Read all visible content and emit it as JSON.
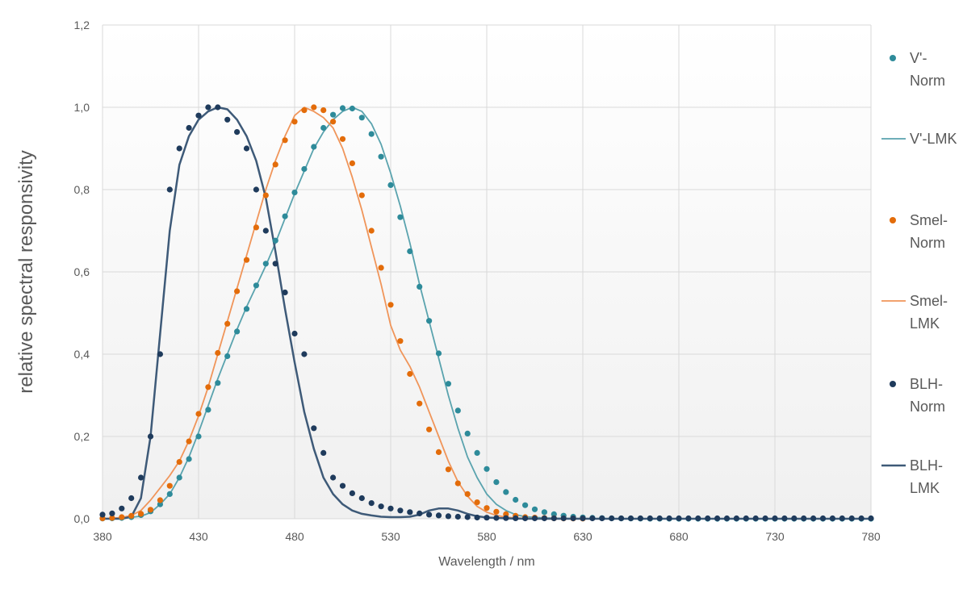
{
  "chart_data": {
    "type": "line",
    "title": "",
    "xlabel": "Wavelength / nm",
    "ylabel": "relative spectral responsivity",
    "xlim": [
      380,
      780
    ],
    "ylim": [
      0,
      1.2
    ],
    "x_ticks": [
      "380",
      "430",
      "480",
      "530",
      "580",
      "630",
      "680",
      "730",
      "780"
    ],
    "y_ticks": [
      "0,0",
      "0,2",
      "0,4",
      "0,6",
      "0,8",
      "1,0",
      "1,2"
    ],
    "grid": true,
    "legend_position": "right",
    "series": [
      {
        "name": "V'-Norm",
        "style": "dots",
        "color": "#2e8b9a",
        "legend_lines": [
          "V'-",
          "Norm"
        ],
        "x": [
          380,
          385,
          390,
          395,
          400,
          405,
          410,
          415,
          420,
          425,
          430,
          435,
          440,
          445,
          450,
          455,
          460,
          465,
          470,
          475,
          480,
          485,
          490,
          495,
          500,
          505,
          510,
          515,
          520,
          525,
          530,
          535,
          540,
          545,
          550,
          555,
          560,
          565,
          570,
          575,
          580,
          585,
          590,
          595,
          600,
          605,
          610,
          615,
          620,
          625,
          630,
          635,
          640,
          645,
          650,
          655,
          660,
          665,
          670,
          675,
          680,
          685,
          690,
          695,
          700,
          705,
          710,
          715,
          720,
          725,
          730,
          735,
          740,
          745,
          750,
          755,
          760,
          765,
          770,
          775,
          780
        ],
        "y": [
          0.0006,
          0.001,
          0.002,
          0.004,
          0.009,
          0.018,
          0.035,
          0.06,
          0.1,
          0.145,
          0.2,
          0.265,
          0.33,
          0.395,
          0.455,
          0.51,
          0.567,
          0.62,
          0.676,
          0.735,
          0.793,
          0.85,
          0.904,
          0.95,
          0.982,
          0.998,
          0.997,
          0.975,
          0.935,
          0.88,
          0.811,
          0.733,
          0.65,
          0.564,
          0.481,
          0.402,
          0.328,
          0.263,
          0.207,
          0.16,
          0.121,
          0.089,
          0.065,
          0.046,
          0.033,
          0.023,
          0.016,
          0.011,
          0.0074,
          0.005,
          0.0033,
          0.0022,
          0.0015,
          0.001,
          0.0007,
          0.0005,
          0.0003,
          0.0002,
          0.0001,
          0.0001,
          0,
          0,
          0,
          0,
          0,
          0,
          0,
          0,
          0,
          0,
          0,
          0,
          0,
          0,
          0,
          0,
          0,
          0,
          0,
          0,
          0
        ]
      },
      {
        "name": "V'-LMK",
        "style": "line",
        "color": "#5aa3ae",
        "legend_lines": [
          "V'-LMK"
        ],
        "x": [
          380,
          390,
          400,
          405,
          410,
          415,
          420,
          425,
          430,
          435,
          440,
          445,
          450,
          455,
          460,
          465,
          470,
          475,
          480,
          485,
          490,
          495,
          500,
          505,
          510,
          515,
          520,
          525,
          530,
          535,
          540,
          545,
          550,
          555,
          560,
          565,
          570,
          575,
          580,
          585,
          590,
          595,
          600,
          610,
          620,
          640,
          680,
          780
        ],
        "y": [
          0,
          0.001,
          0.006,
          0.015,
          0.035,
          0.06,
          0.1,
          0.15,
          0.21,
          0.275,
          0.34,
          0.4,
          0.46,
          0.515,
          0.565,
          0.615,
          0.67,
          0.73,
          0.79,
          0.845,
          0.9,
          0.94,
          0.97,
          0.99,
          1.0,
          0.99,
          0.96,
          0.91,
          0.84,
          0.76,
          0.67,
          0.57,
          0.48,
          0.39,
          0.3,
          0.22,
          0.15,
          0.1,
          0.06,
          0.035,
          0.02,
          0.01,
          0.005,
          0.002,
          0.001,
          0,
          0,
          0
        ]
      },
      {
        "name": "Smel-Norm",
        "style": "dots",
        "color": "#e36c0a",
        "legend_lines": [
          "Smel-",
          "Norm"
        ],
        "x": [
          380,
          385,
          390,
          395,
          400,
          405,
          410,
          415,
          420,
          425,
          430,
          435,
          440,
          445,
          450,
          455,
          460,
          465,
          470,
          475,
          480,
          485,
          490,
          495,
          500,
          505,
          510,
          515,
          520,
          525,
          530,
          535,
          540,
          545,
          550,
          555,
          560,
          565,
          570,
          575,
          580,
          585,
          590,
          595,
          600,
          605,
          610,
          615,
          620,
          625,
          630
        ],
        "y": [
          0.001,
          0.002,
          0.004,
          0.007,
          0.012,
          0.022,
          0.045,
          0.08,
          0.138,
          0.188,
          0.255,
          0.32,
          0.403,
          0.474,
          0.553,
          0.629,
          0.708,
          0.786,
          0.861,
          0.92,
          0.965,
          0.993,
          1.0,
          0.993,
          0.965,
          0.923,
          0.864,
          0.786,
          0.7,
          0.61,
          0.52,
          0.432,
          0.352,
          0.28,
          0.217,
          0.162,
          0.12,
          0.086,
          0.06,
          0.04,
          0.026,
          0.017,
          0.011,
          0.007,
          0.004,
          0.0028,
          0.0018,
          0.0012,
          0.0008,
          0.0005,
          0.0003
        ]
      },
      {
        "name": "Smel-LMK",
        "style": "line",
        "color": "#f0955a",
        "legend_lines": [
          "Smel-",
          "LMK"
        ],
        "x": [
          380,
          390,
          395,
          400,
          405,
          410,
          415,
          420,
          425,
          430,
          435,
          440,
          445,
          450,
          455,
          460,
          465,
          470,
          475,
          480,
          485,
          490,
          495,
          500,
          505,
          510,
          515,
          520,
          525,
          530,
          535,
          540,
          545,
          550,
          555,
          560,
          565,
          570,
          575,
          580,
          585,
          590,
          595,
          600,
          610,
          620,
          640,
          680,
          780
        ],
        "y": [
          0,
          0.003,
          0.008,
          0.02,
          0.045,
          0.075,
          0.105,
          0.14,
          0.19,
          0.25,
          0.32,
          0.4,
          0.48,
          0.56,
          0.64,
          0.72,
          0.8,
          0.87,
          0.93,
          0.98,
          1.0,
          0.99,
          0.975,
          0.95,
          0.9,
          0.83,
          0.75,
          0.66,
          0.57,
          0.47,
          0.41,
          0.37,
          0.32,
          0.26,
          0.2,
          0.14,
          0.09,
          0.055,
          0.03,
          0.016,
          0.008,
          0.004,
          0.002,
          0.001,
          0,
          0,
          0,
          0,
          0
        ]
      },
      {
        "name": "BLH-Norm",
        "style": "dots",
        "color": "#1f3b5c",
        "legend_lines": [
          "BLH-",
          "Norm"
        ],
        "x": [
          380,
          385,
          390,
          395,
          400,
          405,
          410,
          415,
          420,
          425,
          430,
          435,
          440,
          445,
          450,
          455,
          460,
          465,
          470,
          475,
          480,
          485,
          490,
          495,
          500,
          505,
          510,
          515,
          520,
          525,
          530,
          535,
          540,
          545,
          550,
          555,
          560,
          565,
          570,
          575,
          580,
          585,
          590,
          595,
          600,
          605,
          610,
          615,
          620,
          625,
          630,
          635,
          640,
          645,
          650,
          655,
          660,
          665,
          670,
          675,
          680,
          685,
          690,
          695,
          700,
          705,
          710,
          715,
          720,
          725,
          730,
          735,
          740,
          745,
          750,
          755,
          760,
          765,
          770,
          775,
          780
        ],
        "y": [
          0.01,
          0.013,
          0.025,
          0.05,
          0.1,
          0.2,
          0.4,
          0.8,
          0.9,
          0.95,
          0.98,
          1.0,
          1.0,
          0.97,
          0.94,
          0.9,
          0.8,
          0.7,
          0.62,
          0.55,
          0.45,
          0.4,
          0.22,
          0.16,
          0.1,
          0.08,
          0.062,
          0.05,
          0.038,
          0.03,
          0.025,
          0.02,
          0.016,
          0.013,
          0.01,
          0.008,
          0.006,
          0.005,
          0.004,
          0.003,
          0.0025,
          0.002,
          0.0015,
          0.0012,
          0.001,
          0.001,
          0.001,
          0.001,
          0.001,
          0.001,
          0.001,
          0.001,
          0.001,
          0.001,
          0.001,
          0.001,
          0.001,
          0.001,
          0.001,
          0.001,
          0.001,
          0.001,
          0.001,
          0.001,
          0.001,
          0.001,
          0.001,
          0.001,
          0.001,
          0.001,
          0.001,
          0.001,
          0.001,
          0.001,
          0.001,
          0.001,
          0.001,
          0.001,
          0.001,
          0.001,
          0.001
        ]
      },
      {
        "name": "BLH-LMK",
        "style": "line",
        "color": "#3e5a78",
        "legend_lines": [
          "BLH-",
          "LMK"
        ],
        "x": [
          380,
          390,
          395,
          400,
          405,
          410,
          415,
          420,
          425,
          430,
          435,
          440,
          445,
          450,
          455,
          460,
          465,
          470,
          475,
          480,
          485,
          490,
          495,
          500,
          505,
          510,
          515,
          520,
          525,
          530,
          535,
          540,
          545,
          550,
          555,
          560,
          565,
          570,
          575,
          580,
          590,
          600,
          620,
          680,
          780
        ],
        "y": [
          0,
          0,
          0.005,
          0.05,
          0.2,
          0.45,
          0.7,
          0.86,
          0.93,
          0.97,
          0.99,
          1.0,
          0.995,
          0.97,
          0.93,
          0.87,
          0.78,
          0.65,
          0.51,
          0.38,
          0.26,
          0.17,
          0.1,
          0.06,
          0.035,
          0.02,
          0.012,
          0.008,
          0.005,
          0.004,
          0.004,
          0.005,
          0.01,
          0.02,
          0.025,
          0.025,
          0.02,
          0.012,
          0.006,
          0.003,
          0.001,
          0,
          0,
          0,
          0
        ]
      }
    ]
  }
}
